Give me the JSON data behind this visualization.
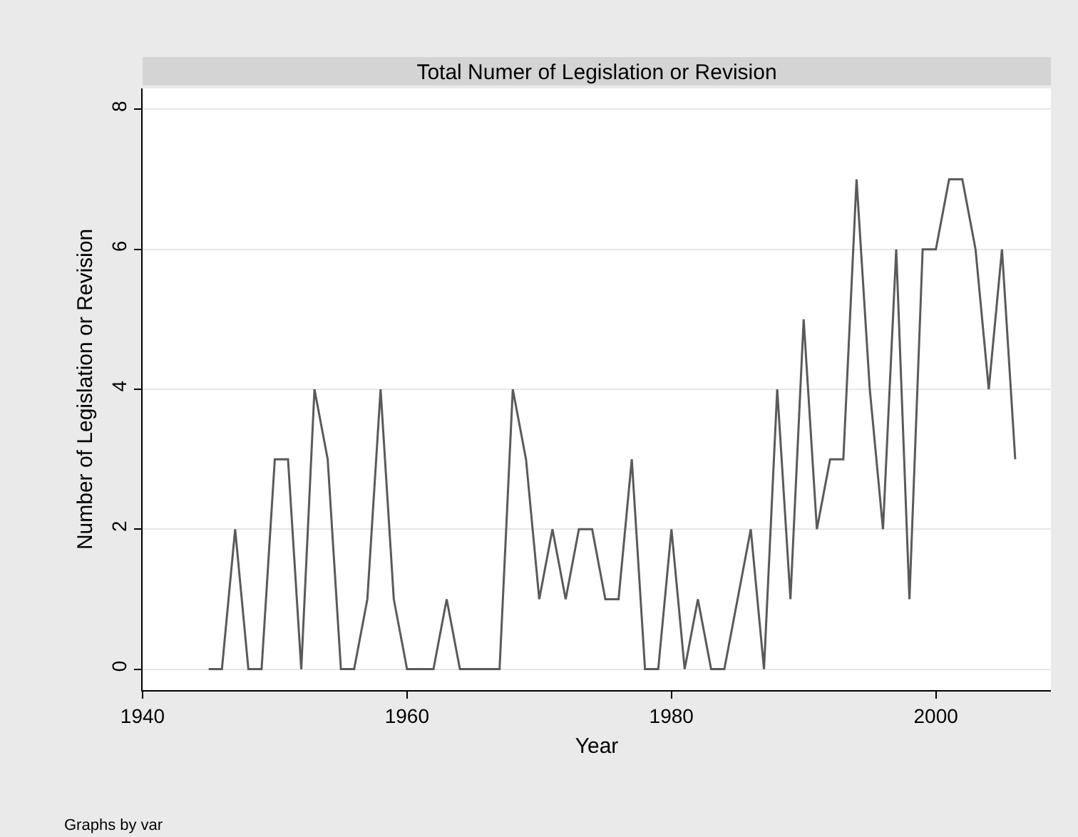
{
  "chart_data": {
    "type": "line",
    "title": "Total Numer of Legislation or Revision",
    "xlabel": "Year",
    "ylabel": "Number of Legislation or Revision",
    "x": [
      1945,
      1946,
      1947,
      1948,
      1949,
      1950,
      1951,
      1952,
      1953,
      1954,
      1955,
      1956,
      1957,
      1958,
      1959,
      1960,
      1961,
      1962,
      1963,
      1964,
      1965,
      1966,
      1967,
      1968,
      1969,
      1970,
      1971,
      1972,
      1973,
      1974,
      1975,
      1976,
      1977,
      1978,
      1979,
      1980,
      1981,
      1982,
      1983,
      1984,
      1985,
      1986,
      1987,
      1988,
      1989,
      1990,
      1991,
      1992,
      1993,
      1994,
      1995,
      1996,
      1997,
      1998,
      1999,
      2000,
      2001,
      2002,
      2003,
      2004,
      2005,
      2006
    ],
    "series": [
      {
        "color": "#5a5a5a",
        "values": [
          0,
          0,
          2,
          0,
          0,
          3,
          3,
          0,
          4,
          3,
          0,
          0,
          1,
          4,
          1,
          0,
          0,
          0,
          1,
          0,
          0,
          0,
          0,
          4,
          3,
          1,
          2,
          1,
          2,
          2,
          1,
          1,
          3,
          0,
          0,
          2,
          0,
          1,
          0,
          0,
          1,
          2,
          0,
          4,
          1,
          5,
          2,
          3,
          3,
          7,
          4,
          2,
          6,
          1,
          6,
          6,
          7,
          7,
          6,
          4,
          6,
          3
        ]
      }
    ],
    "xlim": [
      1940,
      2008.7
    ],
    "xticks": [
      1940,
      1960,
      1980,
      2000
    ],
    "ylim": [
      -0.3,
      8.3
    ],
    "yticks": [
      0,
      2,
      4,
      6,
      8
    ],
    "grid": "y",
    "marker": "none",
    "line_style": "solid",
    "annotations": [
      "Graphs by var"
    ]
  }
}
